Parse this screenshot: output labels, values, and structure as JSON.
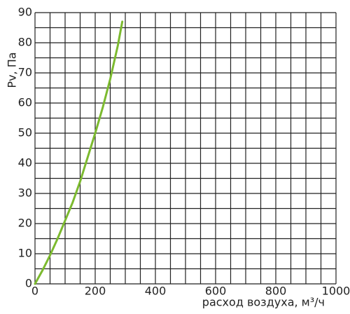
{
  "chart_data": {
    "type": "line",
    "xlabel": "расход воздуха, м³/ч",
    "ylabel": "Pv, Па",
    "x": [
      0,
      25,
      50,
      75,
      100,
      125,
      150,
      175,
      200,
      225,
      250,
      275,
      290
    ],
    "series": [
      {
        "name": "Pv",
        "color": "#7cba2f",
        "values": [
          0,
          4.5,
          9.5,
          15,
          21,
          27,
          34,
          42,
          50,
          58.5,
          68,
          79,
          87
        ]
      }
    ],
    "xlim": [
      0,
      1000
    ],
    "xticks": [
      0,
      200,
      400,
      600,
      800,
      1000
    ],
    "ylim": [
      0,
      90
    ],
    "yticks": [
      0,
      10,
      20,
      30,
      40,
      50,
      60,
      70,
      80,
      90
    ],
    "grid": true
  }
}
